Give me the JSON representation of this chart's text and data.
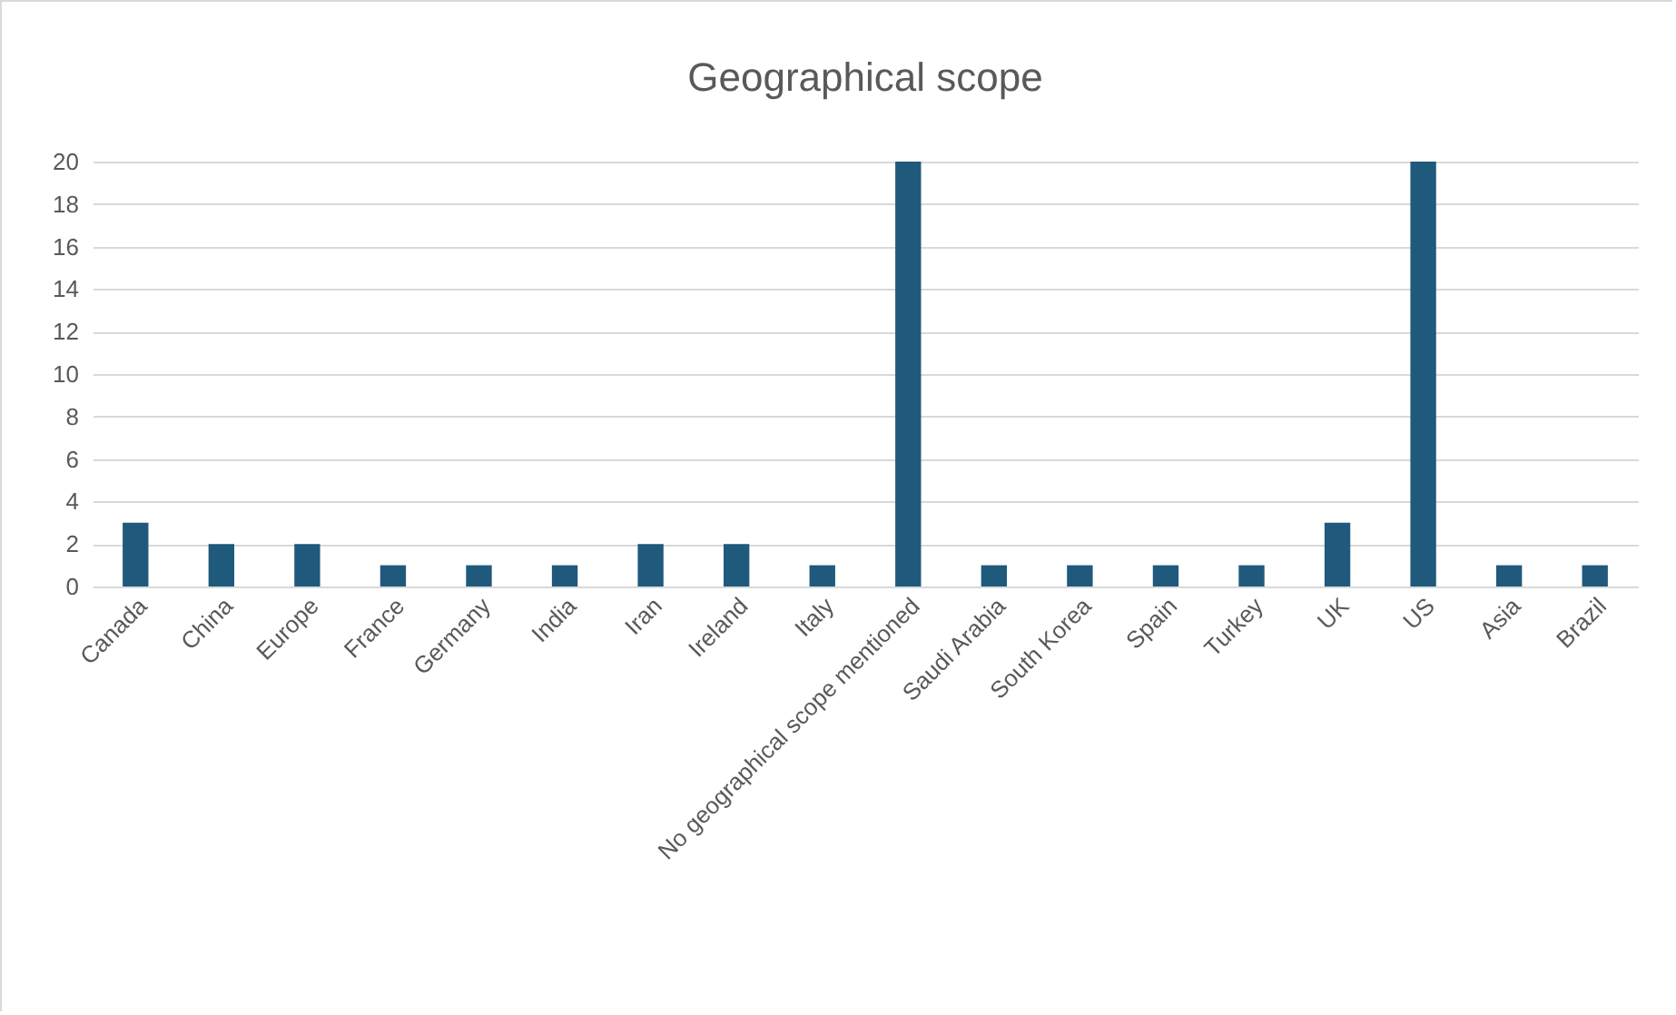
{
  "chart_data": {
    "type": "bar",
    "title": "Geographical scope",
    "categories": [
      "Canada",
      "China",
      "Europe",
      "France",
      "Germany",
      "India",
      "Iran",
      "Ireland",
      "Italy",
      "No geographical scope mentioned",
      "Saudi Arabia",
      "South Korea",
      "Spain",
      "Turkey",
      "UK",
      "US",
      "Asia",
      "Brazil"
    ],
    "values": [
      3,
      2,
      2,
      1,
      1,
      1,
      2,
      2,
      1,
      20,
      1,
      1,
      1,
      1,
      3,
      20,
      1,
      1
    ],
    "color": "#1f5a7c",
    "ylim": [
      0,
      20
    ],
    "yticks": [
      0,
      2,
      4,
      6,
      8,
      10,
      12,
      14,
      16,
      18,
      20
    ],
    "grid": "y"
  }
}
